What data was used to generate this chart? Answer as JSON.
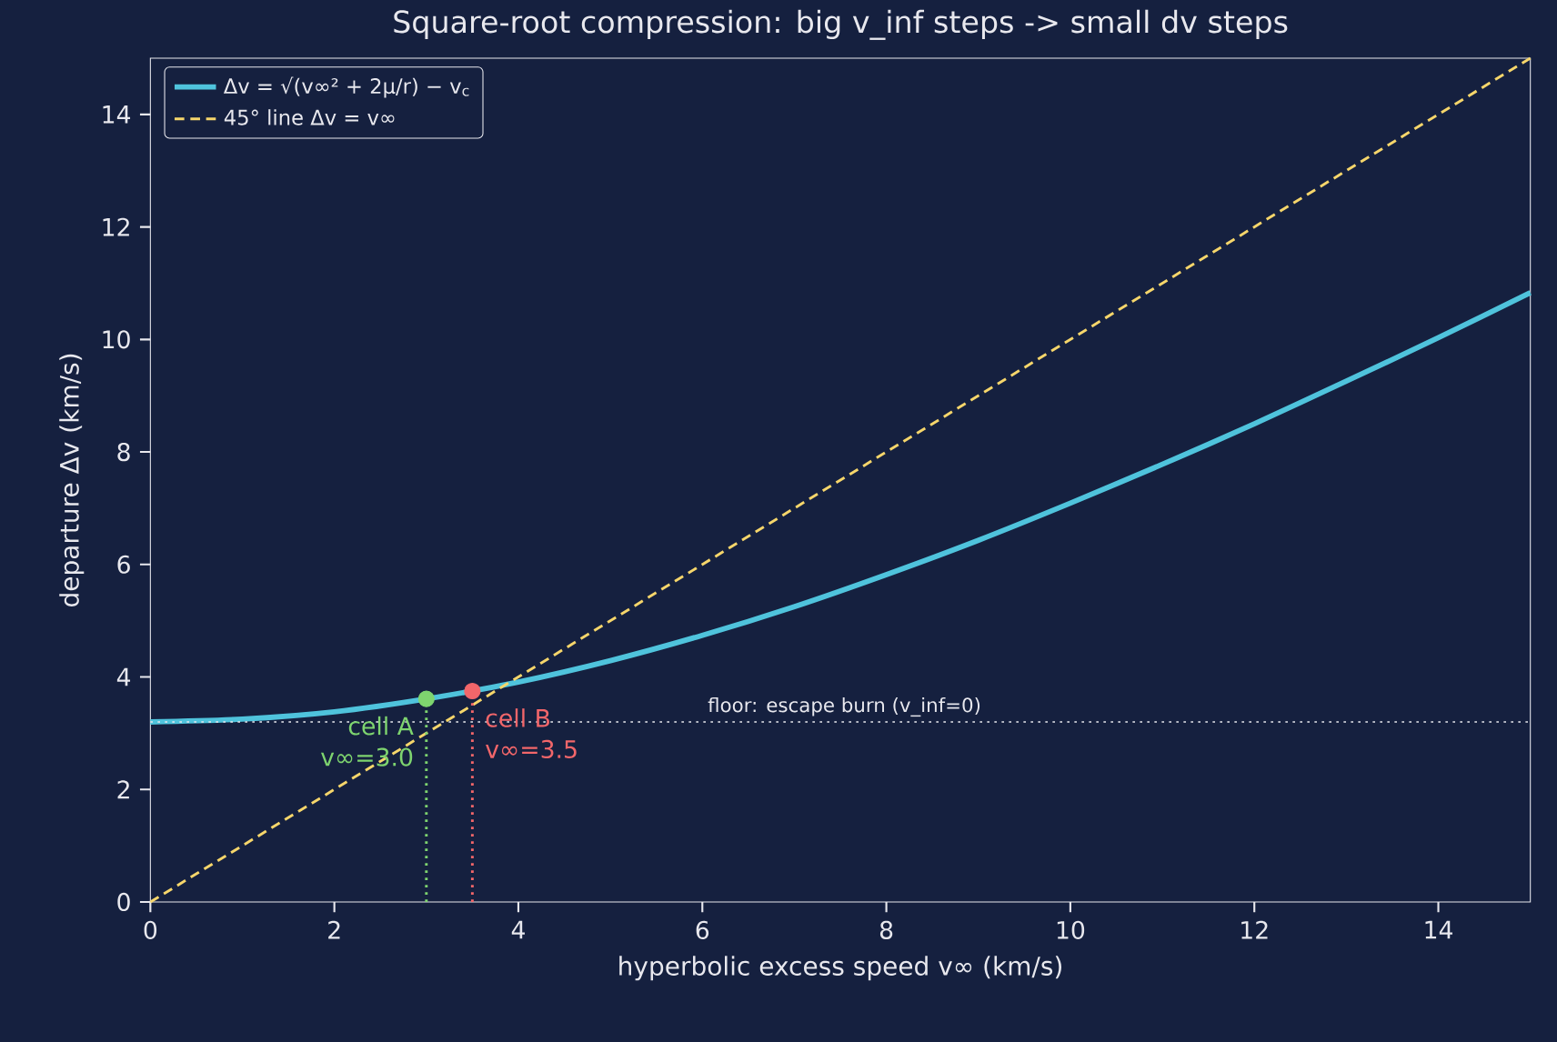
{
  "chart_data": {
    "type": "line",
    "title": "Square-root compression: big v_inf steps -> small dv steps",
    "xlabel": "hyperbolic excess speed v∞ (km/s)",
    "ylabel": "departure Δv (km/s)",
    "x": [
      0,
      1,
      2,
      3,
      4,
      5,
      6,
      7,
      8,
      9,
      10,
      11,
      12,
      13,
      14,
      15
    ],
    "series": [
      {
        "name": "Δv = √(v∞² + 2μ/r) − v$_{c}$",
        "color": "#4fc3dc",
        "line_style": "solid",
        "values": [
          3.2,
          3.25,
          3.38,
          3.61,
          3.91,
          4.29,
          4.74,
          5.25,
          5.82,
          6.43,
          7.09,
          7.78,
          8.5,
          9.26,
          10.03,
          10.83
        ]
      },
      {
        "name": "45° line Δv = v∞",
        "color": "#f6d66b",
        "line_style": "dashed",
        "x": [
          0,
          15
        ],
        "values": [
          0,
          15
        ]
      },
      {
        "type": "line",
        "color": "#7ed46f",
        "line_style": "dotted",
        "x": [
          3,
          3
        ],
        "values": [
          0,
          3.61
        ]
      },
      {
        "type": "line",
        "color": "#f2666a",
        "line_style": "dotted",
        "x": [
          3.5,
          3.5
        ],
        "values": [
          0,
          3.75
        ]
      },
      {
        "type": "scatter",
        "color": "#7ed46f",
        "marker": "circle",
        "x": [
          3
        ],
        "values": [
          3.61
        ]
      },
      {
        "type": "scatter",
        "color": "#f2666a",
        "marker": "circle",
        "x": [
          3.5
        ],
        "values": [
          3.75
        ]
      },
      {
        "type": "line",
        "color": "#e8e8ee",
        "line_style": "dotted",
        "x": [
          0,
          15
        ],
        "values": [
          3.2,
          3.2
        ]
      }
    ],
    "annotations": [
      {
        "text": "floor: escape burn (v_inf=0)",
        "x": 6,
        "y": 3.2
      },
      {
        "text": "cell A",
        "x": 3,
        "y": 3.61
      },
      {
        "text": "v∞=3.0",
        "x": 3,
        "y": 3.61
      },
      {
        "text": "cell B",
        "x": 3.5,
        "y": 3.75
      },
      {
        "text": "v∞=3.5",
        "x": 3.5,
        "y": 3.75
      }
    ],
    "xlim": [
      0,
      15
    ],
    "ylim": [
      0,
      15
    ],
    "xticks": [
      0,
      2,
      4,
      6,
      8,
      10,
      12,
      14
    ],
    "yticks": [
      0,
      2,
      4,
      6,
      8,
      10,
      12,
      14
    ],
    "legend": "top left",
    "grid": false
  }
}
